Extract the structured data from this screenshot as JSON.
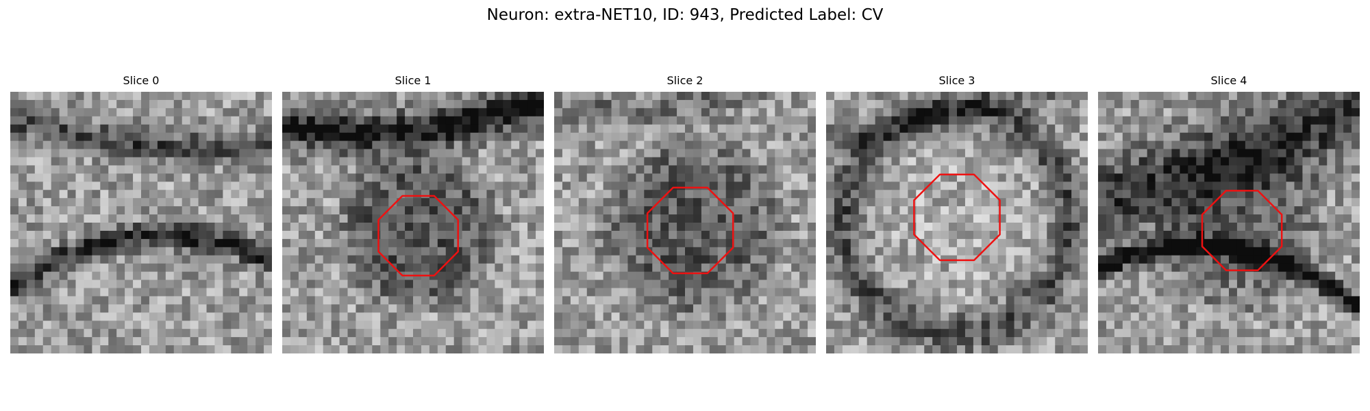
{
  "figure": {
    "title": "Neuron: extra-NET10, ID: 943, Predicted Label: CV"
  },
  "roi_color": "#ee1111",
  "slices": [
    {
      "label": "Slice 0",
      "roi_visible": false
    },
    {
      "label": "Slice 1",
      "roi_visible": true
    },
    {
      "label": "Slice 2",
      "roi_visible": true
    },
    {
      "label": "Slice 3",
      "roi_visible": true
    },
    {
      "label": "Slice 4",
      "roi_visible": true
    }
  ]
}
